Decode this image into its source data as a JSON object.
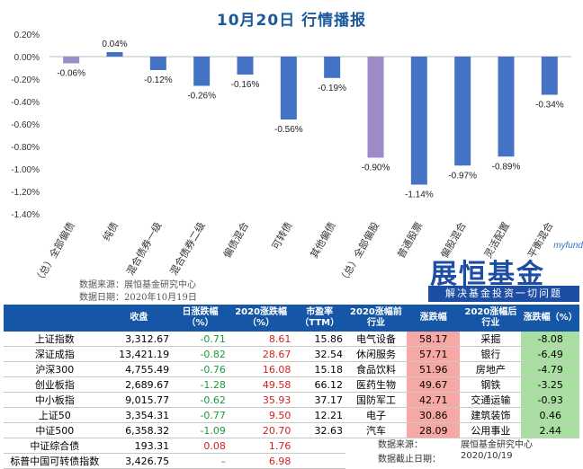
{
  "title": "10月20日  行情播报",
  "chart_data": {
    "type": "bar",
    "categories": [
      "（总）全部偏债",
      "纯债",
      "混合债券一级",
      "混合债券二级",
      "偏债混合",
      "可转债",
      "其他偏债",
      "（总）全部偏股",
      "普通股票",
      "偏股混合",
      "灵活配置",
      "平衡混合"
    ],
    "values": [
      -0.06,
      0.04,
      -0.12,
      -0.26,
      -0.16,
      -0.56,
      -0.19,
      -0.9,
      -1.14,
      -0.97,
      -0.89,
      -0.34
    ],
    "value_labels": [
      "-0.06%",
      "0.04%",
      "-0.12%",
      "-0.26%",
      "-0.16%",
      "-0.56%",
      "-0.19%",
      "-0.90%",
      "-1.14%",
      "-0.97%",
      "-0.89%",
      "-0.34%"
    ],
    "highlight": [
      0,
      7
    ],
    "colors": {
      "bar": "#4472c4",
      "highlight": "#9c8dc8"
    },
    "yticks": [
      "0.20%",
      "0.00%",
      "-0.20%",
      "-0.40%",
      "-0.60%",
      "-0.80%",
      "-1.00%",
      "-1.20%",
      "-1.40%"
    ],
    "ylim": [
      -1.4,
      0.2
    ]
  },
  "source": {
    "line1": "数据来源：展恒基金研究中心",
    "line2": "数据日期：2020年10月19日"
  },
  "logo": {
    "myfund": "myfund",
    "brand": "展恒基金",
    "slogan": "解决基金投资一切问题"
  },
  "index_table": {
    "headers": [
      "",
      "收盘",
      "日涨跌幅（%）",
      "2020涨跌幅（%）",
      "市盈率（TTM）"
    ],
    "rows": [
      [
        "上证指数",
        "3,312.67",
        "-0.71",
        "8.61",
        "15.86"
      ],
      [
        "深证成指",
        "13,421.19",
        "-0.82",
        "28.67",
        "32.54"
      ],
      [
        "沪深300",
        "4,755.49",
        "-0.76",
        "16.08",
        "15.18"
      ],
      [
        "创业板指",
        "2,689.67",
        "-1.28",
        "49.58",
        "66.12"
      ],
      [
        "中小板指",
        "9,015.77",
        "-0.62",
        "35.93",
        "37.17"
      ],
      [
        "上证50",
        "3,354.31",
        "-0.77",
        "9.50",
        "12.21"
      ],
      [
        "中证500",
        "6,358.32",
        "-1.09",
        "20.70",
        "32.63"
      ],
      [
        "中证综合债",
        "193.31",
        "0.08",
        "1.76",
        ""
      ],
      [
        "标普中国可转债指数",
        "3,426.75",
        "–",
        "6.98",
        ""
      ]
    ]
  },
  "industry_table": {
    "headers": [
      "2020涨幅前行业",
      "涨跌幅",
      "2020涨幅后行业",
      "涨跌幅（%）"
    ],
    "rows": [
      [
        "电气设备",
        "58.17",
        "采掘",
        "-8.08"
      ],
      [
        "休闲服务",
        "57.71",
        "银行",
        "-6.49"
      ],
      [
        "食品饮料",
        "51.96",
        "房地产",
        "-4.79"
      ],
      [
        "医药生物",
        "49.67",
        "钢铁",
        "-3.25"
      ],
      [
        "国防军工",
        "42.71",
        "交通运输",
        "-0.93"
      ],
      [
        "电子",
        "30.86",
        "建筑装饰",
        "0.46"
      ],
      [
        "汽车",
        "28.09",
        "公用事业",
        "2.44"
      ]
    ],
    "footer": {
      "source_label": "数据来源：",
      "source_value": "展恒基金研究中心",
      "date_label": "数据截止日期：",
      "date_value": "2020/10/19"
    }
  }
}
